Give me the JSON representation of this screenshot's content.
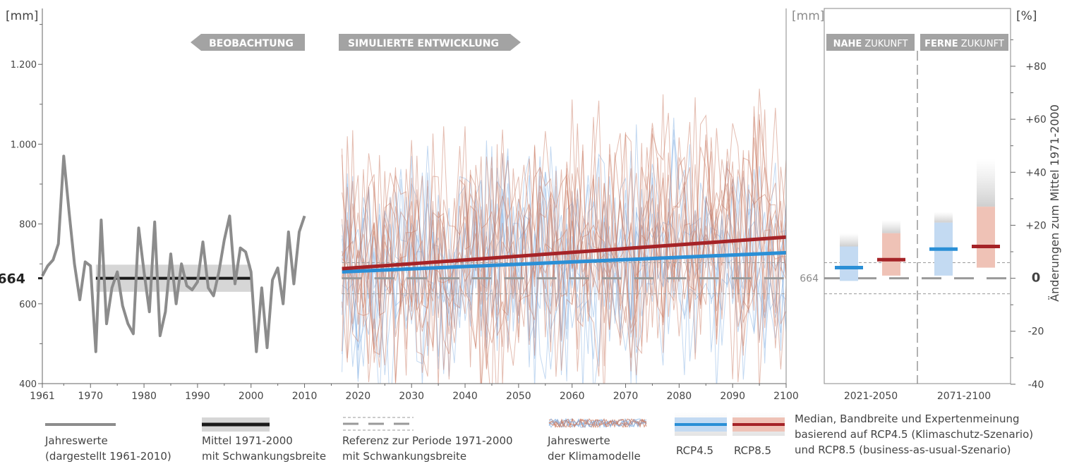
{
  "chart_data": {
    "type": "line",
    "units": {
      "left": "[mm]",
      "mid": "[mm]",
      "right": "[%]"
    },
    "right_ylabel": "Änderungen zum Mittel 1971-2000",
    "banners": {
      "obs": "BEOBACHTUNG",
      "sim": "SIMULIERTE ENTWICKLUNG"
    },
    "panel_headers": [
      {
        "bold": "NAHE",
        "rest": " ZUKUNFT"
      },
      {
        "bold": "FERNE",
        "rest": " ZUKUNFT"
      }
    ],
    "ref_value_label": "664",
    "ref_value": 664,
    "ylim": [
      400,
      1340
    ],
    "yticks": [
      400,
      600,
      800,
      1000,
      1200
    ],
    "ytick_labels": [
      "400",
      "600",
      "800",
      "1.000",
      "1.200"
    ],
    "xlim": [
      1961,
      2100
    ],
    "xticks": [
      1961,
      1970,
      1980,
      1990,
      2000,
      2010,
      2020,
      2030,
      2040,
      2050,
      2060,
      2070,
      2080,
      2090,
      2100
    ],
    "right_ylim": [
      -40,
      100
    ],
    "right_yticks": [
      -40,
      -20,
      0,
      20,
      40,
      60,
      80
    ],
    "right_ytick_labels": [
      "-40",
      "-20",
      "0",
      "+20",
      "+40",
      "+60",
      "+80"
    ],
    "period_labels": [
      "2021-2050",
      "2071-2100"
    ],
    "observed": {
      "name": "Jahreswerte",
      "x": [
        1961,
        1962,
        1963,
        1964,
        1965,
        1966,
        1967,
        1968,
        1969,
        1970,
        1971,
        1972,
        1973,
        1974,
        1975,
        1976,
        1977,
        1978,
        1979,
        1980,
        1981,
        1982,
        1983,
        1984,
        1985,
        1986,
        1987,
        1988,
        1989,
        1990,
        1991,
        1992,
        1993,
        1994,
        1995,
        1996,
        1997,
        1998,
        1999,
        2000,
        2001,
        2002,
        2003,
        2004,
        2005,
        2006,
        2007,
        2008,
        2009,
        2010
      ],
      "y": [
        670,
        695,
        710,
        750,
        970,
        830,
        700,
        610,
        705,
        695,
        480,
        810,
        550,
        640,
        680,
        595,
        550,
        525,
        790,
        680,
        580,
        805,
        520,
        580,
        725,
        600,
        700,
        645,
        635,
        655,
        755,
        640,
        620,
        680,
        760,
        820,
        650,
        740,
        730,
        680,
        480,
        640,
        490,
        660,
        690,
        600,
        780,
        650,
        780,
        820
      ]
    },
    "observed_mean": {
      "name": "Mittel 1971-2000",
      "start": 1971,
      "end": 2000,
      "value": 664,
      "band": [
        630,
        698
      ]
    },
    "reference_band": {
      "name": "Referenz zur Periode 1971-2000",
      "value": 664,
      "band": [
        625,
        703
      ]
    },
    "model_years": [
      2017,
      2100
    ],
    "rcp45_trend": {
      "name": "RCP4.5",
      "color": "#2a8fd6",
      "x": [
        2017,
        2100
      ],
      "y": [
        680,
        728
      ]
    },
    "rcp85_trend": {
      "name": "RCP8.5",
      "color": "#a52327",
      "x": [
        2017,
        2100
      ],
      "y": [
        688,
        767
      ]
    },
    "future_boxes": [
      {
        "period": "2021-2050",
        "scenario": "RCP4.5",
        "median": 4,
        "low": -1,
        "high": 12,
        "expert_top": 17
      },
      {
        "period": "2021-2050",
        "scenario": "RCP8.5",
        "median": 7,
        "low": 1,
        "high": 17,
        "expert_top": 22
      },
      {
        "period": "2071-2100",
        "scenario": "RCP4.5",
        "median": 11,
        "low": 1,
        "high": 21,
        "expert_top": 25
      },
      {
        "period": "2071-2100",
        "scenario": "RCP8.5",
        "median": 12,
        "low": 4,
        "high": 27,
        "expert_top": 45
      }
    ],
    "colors": {
      "rcp45": "#2a8fd6",
      "rcp85": "#a52327",
      "observed": "#8c8c8c",
      "mean": "#1a1a1a",
      "banner": "#a3a3a3"
    }
  },
  "legend": {
    "jahreswerte": "Jahreswerte\n(dargestellt 1961-2010)",
    "mittel": "Mittel 1971-2000\nmit Schwankungsbreite",
    "referenz": "Referenz zur Periode 1971-2000\nmit Schwankungsbreite",
    "klimamodelle": "Jahreswerte\nder Klimamodelle",
    "rcp45": "RCP4.5",
    "rcp85": "RCP8.5",
    "median": "Median, Bandbreite und Expertenmeinung\nbasierend auf RCP4.5 (Klimaschutz-Szenario)\nund RCP8.5 (business-as-usual-Szenario)"
  }
}
